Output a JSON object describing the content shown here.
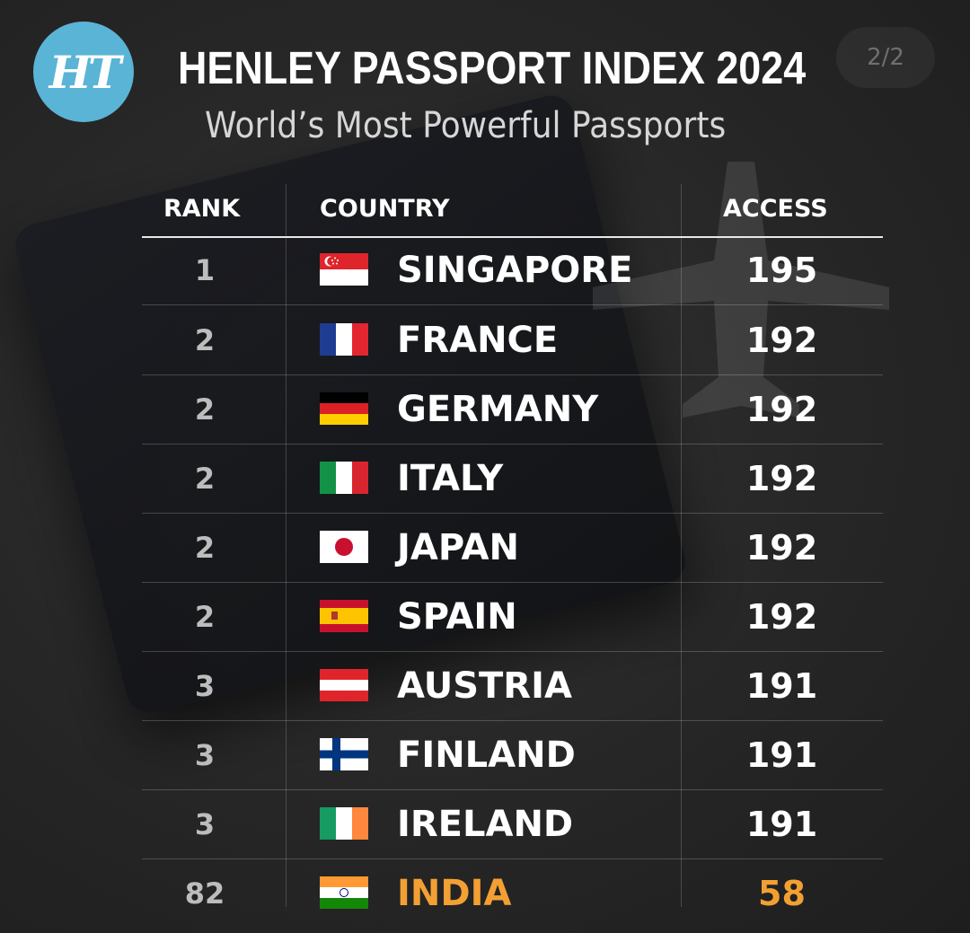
{
  "header": {
    "logo_text": "HT",
    "title": "HENLEY PASSPORT INDEX 2024",
    "subtitle": "World’s Most Powerful Passports",
    "pager": "2/2"
  },
  "table": {
    "columns": {
      "rank": "RANK",
      "country": "COUNTRY",
      "access": "ACCESS"
    },
    "rows": [
      {
        "rank": "1",
        "country": "SINGAPORE",
        "access": "195",
        "flag": "singapore-flag-icon"
      },
      {
        "rank": "2",
        "country": "FRANCE",
        "access": "192",
        "flag": "france-flag-icon"
      },
      {
        "rank": "2",
        "country": "GERMANY",
        "access": "192",
        "flag": "germany-flag-icon"
      },
      {
        "rank": "2",
        "country": "ITALY",
        "access": "192",
        "flag": "italy-flag-icon"
      },
      {
        "rank": "2",
        "country": "JAPAN",
        "access": "192",
        "flag": "japan-flag-icon"
      },
      {
        "rank": "2",
        "country": "SPAIN",
        "access": "192",
        "flag": "spain-flag-icon"
      },
      {
        "rank": "3",
        "country": "AUSTRIA",
        "access": "191",
        "flag": "austria-flag-icon"
      },
      {
        "rank": "3",
        "country": "FINLAND",
        "access": "191",
        "flag": "finland-flag-icon"
      },
      {
        "rank": "3",
        "country": "IRELAND",
        "access": "191",
        "flag": "ireland-flag-icon"
      },
      {
        "rank": "82",
        "country": "INDIA",
        "access": "58",
        "flag": "india-flag-icon",
        "highlight": true
      }
    ]
  },
  "colors": {
    "background": "#262626",
    "logo_badge": "#5ab4d6",
    "highlight": "#f3a033",
    "text": "#ffffff",
    "rank_text": "#bdbdbd"
  }
}
